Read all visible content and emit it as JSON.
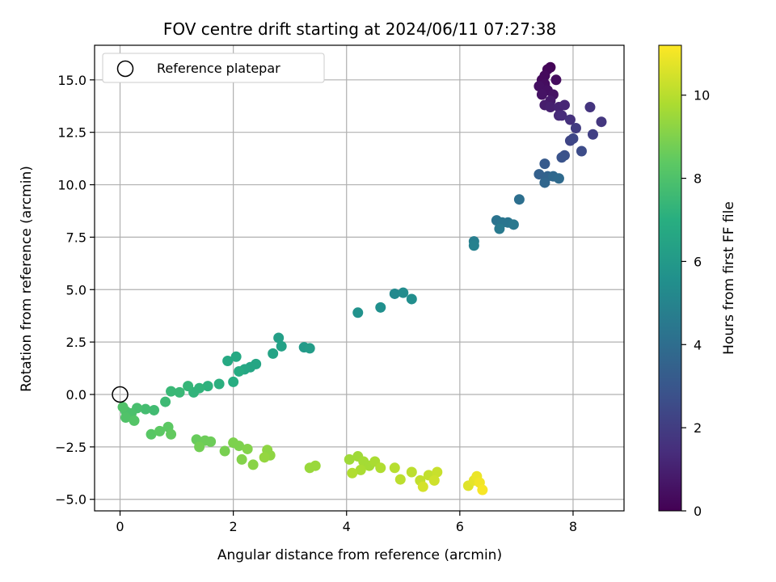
{
  "chart_data": {
    "type": "scatter",
    "title": "FOV centre drift starting at 2024/06/11 07:27:38",
    "xlabel": "Angular distance from reference (arcmin)",
    "ylabel": "Rotation from reference (arcmin)",
    "colorbar_label": "Hours from first FF file",
    "xlim": [
      -0.45,
      8.9
    ],
    "ylim": [
      -5.55,
      16.65
    ],
    "x_ticks": [
      0,
      2,
      4,
      6,
      8
    ],
    "x_tick_labels": [
      "0",
      "2",
      "4",
      "6",
      "8"
    ],
    "y_ticks": [
      -5.0,
      -2.5,
      0.0,
      2.5,
      5.0,
      7.5,
      10.0,
      12.5,
      15.0
    ],
    "y_tick_labels": [
      "−5.0",
      "−2.5",
      "0.0",
      "2.5",
      "5.0",
      "7.5",
      "10.0",
      "12.5",
      "15.0"
    ],
    "colorbar_range": [
      0,
      11.2
    ],
    "colorbar_ticks": [
      0,
      2,
      4,
      6,
      8,
      10
    ],
    "colorbar_tick_labels": [
      "0",
      "2",
      "4",
      "6",
      "8",
      "10"
    ],
    "colormap": "viridis",
    "grid": true,
    "legend": {
      "label": "Reference platepar",
      "marker": "open-circle",
      "placement": "top-left"
    },
    "reference_point": {
      "x": 0,
      "y": 0
    },
    "points": [
      {
        "x": 7.6,
        "y": 15.6,
        "t": 0.1
      },
      {
        "x": 7.55,
        "y": 15.5,
        "t": 0.2
      },
      {
        "x": 7.5,
        "y": 15.2,
        "t": 0.3
      },
      {
        "x": 7.45,
        "y": 15.0,
        "t": 0.3
      },
      {
        "x": 7.7,
        "y": 15.0,
        "t": 0.4
      },
      {
        "x": 7.5,
        "y": 14.8,
        "t": 0.4
      },
      {
        "x": 7.4,
        "y": 14.7,
        "t": 0.5
      },
      {
        "x": 7.55,
        "y": 14.5,
        "t": 0.5
      },
      {
        "x": 7.65,
        "y": 14.3,
        "t": 0.6
      },
      {
        "x": 7.45,
        "y": 14.3,
        "t": 0.6
      },
      {
        "x": 7.6,
        "y": 14.0,
        "t": 0.8
      },
      {
        "x": 7.5,
        "y": 13.8,
        "t": 0.9
      },
      {
        "x": 7.6,
        "y": 13.7,
        "t": 1.0
      },
      {
        "x": 7.75,
        "y": 13.7,
        "t": 1.1
      },
      {
        "x": 7.85,
        "y": 13.8,
        "t": 1.2
      },
      {
        "x": 7.75,
        "y": 13.3,
        "t": 1.3
      },
      {
        "x": 7.8,
        "y": 13.3,
        "t": 1.4
      },
      {
        "x": 7.95,
        "y": 13.1,
        "t": 1.6
      },
      {
        "x": 8.3,
        "y": 13.7,
        "t": 1.7
      },
      {
        "x": 8.5,
        "y": 13.0,
        "t": 1.8
      },
      {
        "x": 8.05,
        "y": 12.7,
        "t": 2.0
      },
      {
        "x": 8.35,
        "y": 12.4,
        "t": 2.1
      },
      {
        "x": 7.95,
        "y": 12.1,
        "t": 2.3
      },
      {
        "x": 8.0,
        "y": 12.2,
        "t": 2.4
      },
      {
        "x": 8.15,
        "y": 11.6,
        "t": 2.6
      },
      {
        "x": 7.85,
        "y": 11.4,
        "t": 2.8
      },
      {
        "x": 7.8,
        "y": 11.3,
        "t": 2.9
      },
      {
        "x": 7.5,
        "y": 11.0,
        "t": 3.2
      },
      {
        "x": 7.4,
        "y": 10.5,
        "t": 3.5
      },
      {
        "x": 7.55,
        "y": 10.4,
        "t": 3.6
      },
      {
        "x": 7.5,
        "y": 10.1,
        "t": 3.7
      },
      {
        "x": 7.65,
        "y": 10.4,
        "t": 3.8
      },
      {
        "x": 7.75,
        "y": 10.3,
        "t": 3.9
      },
      {
        "x": 7.05,
        "y": 9.3,
        "t": 4.1
      },
      {
        "x": 6.65,
        "y": 8.3,
        "t": 4.3
      },
      {
        "x": 6.75,
        "y": 8.2,
        "t": 4.4
      },
      {
        "x": 6.85,
        "y": 8.2,
        "t": 4.4
      },
      {
        "x": 6.95,
        "y": 8.1,
        "t": 4.5
      },
      {
        "x": 6.7,
        "y": 7.9,
        "t": 4.6
      },
      {
        "x": 6.25,
        "y": 7.3,
        "t": 4.8
      },
      {
        "x": 6.25,
        "y": 7.1,
        "t": 4.9
      },
      {
        "x": 4.85,
        "y": 4.8,
        "t": 5.3
      },
      {
        "x": 5.0,
        "y": 4.85,
        "t": 5.4
      },
      {
        "x": 5.15,
        "y": 4.55,
        "t": 5.5
      },
      {
        "x": 4.6,
        "y": 4.15,
        "t": 5.6
      },
      {
        "x": 4.2,
        "y": 3.9,
        "t": 5.7
      },
      {
        "x": 3.25,
        "y": 2.25,
        "t": 6.1
      },
      {
        "x": 3.35,
        "y": 2.2,
        "t": 6.2
      },
      {
        "x": 2.8,
        "y": 2.7,
        "t": 6.3
      },
      {
        "x": 2.85,
        "y": 2.3,
        "t": 6.4
      },
      {
        "x": 2.7,
        "y": 1.95,
        "t": 6.5
      },
      {
        "x": 2.4,
        "y": 1.45,
        "t": 6.6
      },
      {
        "x": 2.3,
        "y": 1.3,
        "t": 6.6
      },
      {
        "x": 2.2,
        "y": 1.2,
        "t": 6.7
      },
      {
        "x": 2.05,
        "y": 1.8,
        "t": 6.8
      },
      {
        "x": 1.9,
        "y": 1.6,
        "t": 6.8
      },
      {
        "x": 2.1,
        "y": 1.1,
        "t": 6.9
      },
      {
        "x": 2.0,
        "y": 0.6,
        "t": 7.0
      },
      {
        "x": 1.75,
        "y": 0.5,
        "t": 7.1
      },
      {
        "x": 1.55,
        "y": 0.4,
        "t": 7.2
      },
      {
        "x": 1.4,
        "y": 0.3,
        "t": 7.3
      },
      {
        "x": 1.3,
        "y": 0.1,
        "t": 7.3
      },
      {
        "x": 1.2,
        "y": 0.4,
        "t": 7.4
      },
      {
        "x": 1.05,
        "y": 0.1,
        "t": 7.5
      },
      {
        "x": 0.9,
        "y": 0.15,
        "t": 7.5
      },
      {
        "x": 0.8,
        "y": -0.35,
        "t": 7.6
      },
      {
        "x": 0.6,
        "y": -0.75,
        "t": 7.7
      },
      {
        "x": 0.45,
        "y": -0.7,
        "t": 7.8
      },
      {
        "x": 0.3,
        "y": -0.65,
        "t": 7.9
      },
      {
        "x": 0.2,
        "y": -0.9,
        "t": 8.0
      },
      {
        "x": 0.1,
        "y": -0.8,
        "t": 8.0
      },
      {
        "x": 0.05,
        "y": -0.6,
        "t": 8.1
      },
      {
        "x": 0.1,
        "y": -1.1,
        "t": 8.1
      },
      {
        "x": 0.25,
        "y": -1.25,
        "t": 8.2
      },
      {
        "x": 0.55,
        "y": -1.9,
        "t": 8.3
      },
      {
        "x": 0.7,
        "y": -1.75,
        "t": 8.4
      },
      {
        "x": 0.85,
        "y": -1.55,
        "t": 8.4
      },
      {
        "x": 0.9,
        "y": -1.9,
        "t": 8.5
      },
      {
        "x": 1.35,
        "y": -2.15,
        "t": 8.6
      },
      {
        "x": 1.5,
        "y": -2.2,
        "t": 8.7
      },
      {
        "x": 1.6,
        "y": -2.25,
        "t": 8.7
      },
      {
        "x": 1.4,
        "y": -2.5,
        "t": 8.8
      },
      {
        "x": 1.85,
        "y": -2.7,
        "t": 8.9
      },
      {
        "x": 2.0,
        "y": -2.3,
        "t": 9.0
      },
      {
        "x": 2.1,
        "y": -2.45,
        "t": 9.0
      },
      {
        "x": 2.25,
        "y": -2.6,
        "t": 9.1
      },
      {
        "x": 2.15,
        "y": -3.1,
        "t": 9.1
      },
      {
        "x": 2.35,
        "y": -3.35,
        "t": 9.2
      },
      {
        "x": 2.6,
        "y": -2.65,
        "t": 9.3
      },
      {
        "x": 2.65,
        "y": -2.9,
        "t": 9.3
      },
      {
        "x": 2.55,
        "y": -3.0,
        "t": 9.4
      },
      {
        "x": 3.35,
        "y": -3.5,
        "t": 9.5
      },
      {
        "x": 3.45,
        "y": -3.4,
        "t": 9.5
      },
      {
        "x": 4.05,
        "y": -3.1,
        "t": 9.6
      },
      {
        "x": 4.2,
        "y": -2.95,
        "t": 9.6
      },
      {
        "x": 4.3,
        "y": -3.2,
        "t": 9.7
      },
      {
        "x": 4.4,
        "y": -3.4,
        "t": 9.7
      },
      {
        "x": 4.5,
        "y": -3.2,
        "t": 9.8
      },
      {
        "x": 4.25,
        "y": -3.6,
        "t": 9.8
      },
      {
        "x": 4.1,
        "y": -3.75,
        "t": 9.9
      },
      {
        "x": 4.6,
        "y": -3.5,
        "t": 9.9
      },
      {
        "x": 4.85,
        "y": -3.5,
        "t": 10.0
      },
      {
        "x": 5.15,
        "y": -3.7,
        "t": 10.1
      },
      {
        "x": 4.95,
        "y": -4.05,
        "t": 10.1
      },
      {
        "x": 5.3,
        "y": -4.1,
        "t": 10.2
      },
      {
        "x": 5.45,
        "y": -3.85,
        "t": 10.2
      },
      {
        "x": 5.6,
        "y": -3.7,
        "t": 10.3
      },
      {
        "x": 5.55,
        "y": -4.1,
        "t": 10.4
      },
      {
        "x": 5.35,
        "y": -4.4,
        "t": 10.5
      },
      {
        "x": 6.15,
        "y": -4.35,
        "t": 10.7
      },
      {
        "x": 6.25,
        "y": -4.1,
        "t": 10.8
      },
      {
        "x": 6.3,
        "y": -3.9,
        "t": 10.9
      },
      {
        "x": 6.35,
        "y": -4.2,
        "t": 11.0
      },
      {
        "x": 6.4,
        "y": -4.55,
        "t": 11.1
      }
    ]
  }
}
